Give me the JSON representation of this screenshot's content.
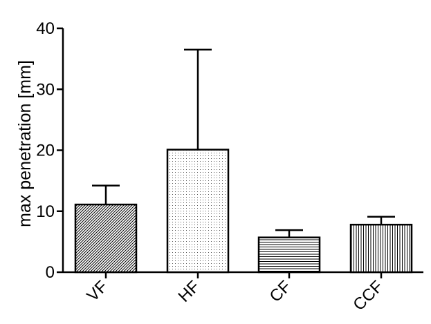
{
  "chart_data": {
    "type": "bar",
    "categories": [
      "VF",
      "HF",
      "CF",
      "CCF"
    ],
    "values": [
      11.1,
      20.1,
      5.7,
      7.8
    ],
    "error_upper": [
      14.2,
      36.5,
      6.9,
      9.1
    ],
    "patterns": [
      "diagonal-hatch",
      "fine-dots",
      "horizontal-lines",
      "vertical-lines"
    ],
    "ylabel": "max penetration [mm]",
    "xlabel": "",
    "ylim": [
      0,
      40
    ],
    "yticks": [
      0,
      10,
      20,
      30,
      40
    ],
    "grid": false,
    "colors": {
      "stroke": "#000000",
      "background": "#ffffff"
    }
  }
}
